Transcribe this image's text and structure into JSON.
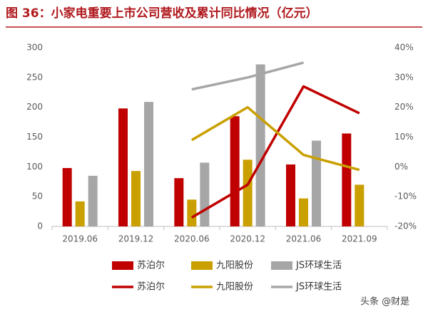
{
  "chart_data": {
    "type": "bar_line",
    "title": "图 36：小家电重要上市公司营收及累计同比情况（亿元）",
    "watermark": "头条 @财是",
    "categories": [
      "2019.06",
      "2019.12",
      "2020.06",
      "2020.12",
      "2021.06",
      "2021.09"
    ],
    "series": [
      {
        "name": "苏泊尔",
        "type": "bar",
        "color": "#c00000",
        "values": [
          98,
          198,
          81,
          185,
          104,
          156
        ]
      },
      {
        "name": "九阳股份",
        "type": "bar",
        "color": "#c9a000",
        "values": [
          42,
          93,
          45,
          112,
          47,
          70
        ]
      },
      {
        "name": "JS环球生活",
        "type": "bar",
        "color": "#a6a6a6",
        "values": [
          85,
          209,
          107,
          272,
          144,
          null
        ]
      },
      {
        "name": "苏泊尔",
        "type": "line",
        "axis": "y2",
        "color": "#c00000",
        "values": [
          null,
          null,
          -17,
          -6,
          27,
          18
        ]
      },
      {
        "name": "九阳股份",
        "type": "line",
        "axis": "y2",
        "color": "#c9a000",
        "values": [
          null,
          null,
          9,
          20,
          4,
          -1
        ]
      },
      {
        "name": "JS环球生活",
        "type": "line",
        "axis": "y2",
        "color": "#a6a6a6",
        "values": [
          null,
          null,
          26,
          30,
          35,
          null
        ]
      }
    ],
    "ylim": [
      0,
      300
    ],
    "yticks": [
      0,
      50,
      100,
      150,
      200,
      250,
      300
    ],
    "y2lim": [
      -20,
      40
    ],
    "y2ticks": [
      {
        "value": -20,
        "label": "-20%"
      },
      {
        "value": -10,
        "label": "-10%"
      },
      {
        "value": 0,
        "label": "0%"
      },
      {
        "value": 10,
        "label": "10%"
      },
      {
        "value": 20,
        "label": "20%"
      },
      {
        "value": 30,
        "label": "30%"
      },
      {
        "value": 40,
        "label": "40%"
      }
    ],
    "grid": false
  }
}
